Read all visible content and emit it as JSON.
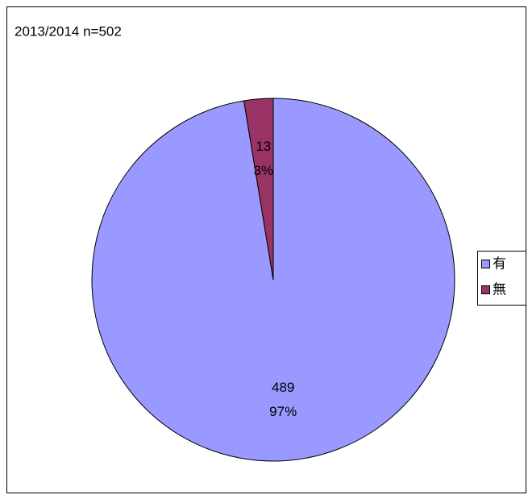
{
  "chart_data": {
    "type": "pie",
    "title": "2013/2014 n=502",
    "categories": [
      "有",
      "無"
    ],
    "values": [
      489,
      13
    ],
    "percent_labels": [
      "97%",
      "3%"
    ],
    "colors": [
      "#9999ff",
      "#993366"
    ],
    "legend": "right"
  }
}
